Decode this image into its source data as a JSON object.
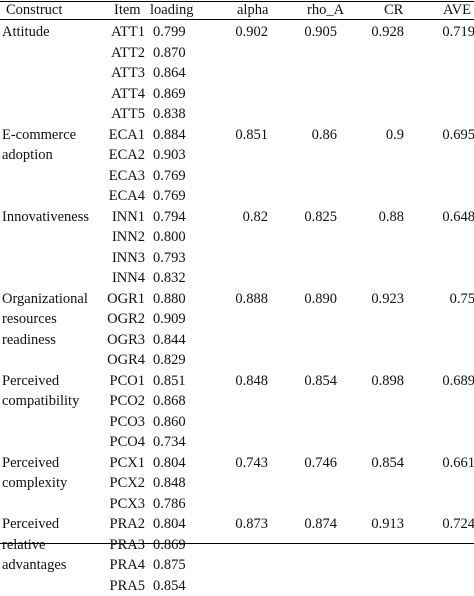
{
  "columns": {
    "construct": "Construct",
    "item": "Item",
    "loading": "loading",
    "alpha": "alpha",
    "rho_a": "rho_A",
    "cr": "CR",
    "ave": "AVE"
  },
  "groups": [
    {
      "construct_lines": [
        "Attitude"
      ],
      "alpha": "0.902",
      "rho_a": "0.905",
      "cr": "0.928",
      "ave": "0.719",
      "items": [
        {
          "item": "ATT1",
          "loading": "0.799"
        },
        {
          "item": "ATT2",
          "loading": "0.870"
        },
        {
          "item": "ATT3",
          "loading": "0.864"
        },
        {
          "item": "ATT4",
          "loading": "0.869"
        },
        {
          "item": "ATT5",
          "loading": "0.838"
        }
      ]
    },
    {
      "construct_lines": [
        "E-commerce",
        "adoption"
      ],
      "alpha": "0.851",
      "rho_a": "0.86",
      "cr": "0.9",
      "ave": "0.695",
      "items": [
        {
          "item": "ECA1",
          "loading": "0.884"
        },
        {
          "item": "ECA2",
          "loading": "0.903"
        },
        {
          "item": "ECA3",
          "loading": "0.769"
        },
        {
          "item": "ECA4",
          "loading": "0.769"
        }
      ]
    },
    {
      "construct_lines": [
        "Innovativeness"
      ],
      "alpha": "0.82",
      "rho_a": "0.825",
      "cr": "0.88",
      "ave": "0.648",
      "items": [
        {
          "item": "INN1",
          "loading": "0.794"
        },
        {
          "item": "INN2",
          "loading": "0.800"
        },
        {
          "item": "INN3",
          "loading": "0.793"
        },
        {
          "item": "INN4",
          "loading": "0.832"
        }
      ]
    },
    {
      "construct_lines": [
        "Organizational",
        "resources",
        "readiness"
      ],
      "alpha": "0.888",
      "rho_a": "0.890",
      "cr": "0.923",
      "ave": "0.75",
      "items": [
        {
          "item": "OGR1",
          "loading": "0.880"
        },
        {
          "item": "OGR2",
          "loading": "0.909"
        },
        {
          "item": "OGR3",
          "loading": "0.844"
        },
        {
          "item": "OGR4",
          "loading": "0.829"
        }
      ]
    },
    {
      "construct_lines": [
        "Perceived",
        "compatibility"
      ],
      "alpha": "0.848",
      "rho_a": "0.854",
      "cr": "0.898",
      "ave": "0.689",
      "items": [
        {
          "item": "PCO1",
          "loading": "0.851"
        },
        {
          "item": "PCO2",
          "loading": "0.868"
        },
        {
          "item": "PCO3",
          "loading": "0.860"
        },
        {
          "item": "PCO4",
          "loading": "0.734"
        }
      ]
    },
    {
      "construct_lines": [
        "Perceived",
        "complexity"
      ],
      "alpha": "0.743",
      "rho_a": "0.746",
      "cr": "0.854",
      "ave": "0.661",
      "items": [
        {
          "item": "PCX1",
          "loading": "0.804"
        },
        {
          "item": "PCX2",
          "loading": "0.848"
        },
        {
          "item": "PCX3",
          "loading": "0.786"
        }
      ]
    },
    {
      "construct_lines": [
        "Perceived",
        "relative",
        "advantages"
      ],
      "alpha": "0.873",
      "rho_a": "0.874",
      "cr": "0.913",
      "ave": "0.724",
      "items": [
        {
          "item": "PRA2",
          "loading": "0.804"
        },
        {
          "item": "PRA3",
          "loading": "0.869"
        },
        {
          "item": "PRA4",
          "loading": "0.875"
        },
        {
          "item": "PRA5",
          "loading": "0.854"
        }
      ]
    }
  ]
}
